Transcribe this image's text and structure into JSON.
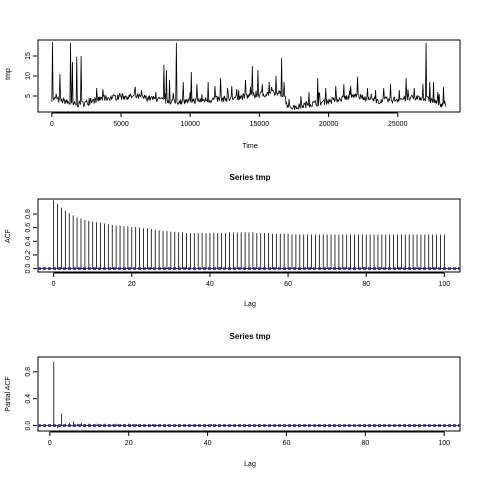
{
  "chart_data": [
    {
      "type": "line",
      "title": "",
      "xlabel": "Time",
      "ylabel": "tmp",
      "xlim": [
        -1000,
        29500
      ],
      "ylim": [
        1.0,
        19.0
      ],
      "xticks": [
        0,
        5000,
        10000,
        15000,
        20000,
        25000
      ],
      "xtick_labels": [
        "0",
        "5000",
        "10000",
        "15000",
        "20000",
        "25000"
      ],
      "yticks": [
        5,
        10,
        15
      ],
      "ytick_labels": [
        "5",
        "10",
        "15"
      ],
      "series_x_range": [
        1,
        28500
      ],
      "baseline": [
        [
          0,
          4.2
        ],
        [
          1000,
          3.6
        ],
        [
          1500,
          2.7
        ],
        [
          2500,
          3.2
        ],
        [
          3500,
          4.2
        ],
        [
          4500,
          4.6
        ],
        [
          6000,
          4.8
        ],
        [
          7000,
          4.4
        ],
        [
          8000,
          3.8
        ],
        [
          9000,
          3.5
        ],
        [
          10000,
          3.7
        ],
        [
          11500,
          4.0
        ],
        [
          13000,
          4.3
        ],
        [
          14000,
          4.8
        ],
        [
          15000,
          5.3
        ],
        [
          16000,
          5.6
        ],
        [
          16800,
          5.4
        ],
        [
          17000,
          2.7
        ],
        [
          17500,
          2.0
        ],
        [
          18500,
          2.8
        ],
        [
          20000,
          3.6
        ],
        [
          21000,
          4.4
        ],
        [
          22000,
          5.0
        ],
        [
          22500,
          4.4
        ],
        [
          23500,
          3.7
        ],
        [
          25000,
          4.1
        ],
        [
          26500,
          4.5
        ],
        [
          27500,
          3.8
        ],
        [
          28500,
          2.4
        ]
      ],
      "spikes": [
        [
          50,
          18.5
        ],
        [
          300,
          5.5
        ],
        [
          600,
          10.5
        ],
        [
          1350,
          18.3
        ],
        [
          1500,
          13.5
        ],
        [
          1800,
          14.8
        ],
        [
          2100,
          15.0
        ],
        [
          2700,
          4.5
        ],
        [
          3800,
          5.2
        ],
        [
          5000,
          5.0
        ],
        [
          6500,
          6.5
        ],
        [
          7500,
          6.0
        ],
        [
          8100,
          12.8
        ],
        [
          8300,
          11.5
        ],
        [
          8500,
          9.0
        ],
        [
          9000,
          18.3
        ],
        [
          9500,
          8.5
        ],
        [
          10100,
          11.0
        ],
        [
          10500,
          8.0
        ],
        [
          11300,
          8.5
        ],
        [
          11800,
          7.5
        ],
        [
          12200,
          9.5
        ],
        [
          12700,
          7.0
        ],
        [
          13000,
          7.5
        ],
        [
          13500,
          6.5
        ],
        [
          14000,
          9.0
        ],
        [
          14500,
          12.5
        ],
        [
          14900,
          11.5
        ],
        [
          15200,
          8.0
        ],
        [
          15700,
          8.5
        ],
        [
          16200,
          10.0
        ],
        [
          16600,
          14.5
        ],
        [
          16800,
          8.5
        ],
        [
          18000,
          5.0
        ],
        [
          18600,
          6.0
        ],
        [
          19200,
          9.5
        ],
        [
          19800,
          7.0
        ],
        [
          20500,
          7.5
        ],
        [
          21100,
          8.0
        ],
        [
          21600,
          7.5
        ],
        [
          22100,
          9.8
        ],
        [
          22800,
          7.0
        ],
        [
          23400,
          6.5
        ],
        [
          24000,
          7.0
        ],
        [
          24500,
          8.0
        ],
        [
          25100,
          6.5
        ],
        [
          25600,
          9.5
        ],
        [
          26200,
          7.0
        ],
        [
          26800,
          8.0
        ],
        [
          27050,
          18.3
        ],
        [
          27300,
          8.5
        ],
        [
          27600,
          8.5
        ],
        [
          28000,
          5.5
        ],
        [
          28300,
          7.2
        ]
      ]
    },
    {
      "type": "bar",
      "title": "Series  tmp",
      "xlabel": "Lag",
      "ylabel": "ACF",
      "xlim": [
        -4,
        104
      ],
      "ylim": [
        -0.05,
        1.02
      ],
      "xticks": [
        0,
        20,
        40,
        60,
        80,
        100
      ],
      "xtick_labels": [
        "0",
        "20",
        "40",
        "60",
        "80",
        "100"
      ],
      "yticks": [
        0.0,
        0.2,
        0.4,
        0.6,
        0.8
      ],
      "ytick_labels": [
        "0.0",
        "0.2",
        "0.4",
        "0.6",
        "0.8"
      ],
      "confidence_band": [
        -0.012,
        0.012
      ],
      "x": [
        0,
        1,
        2,
        3,
        4,
        5,
        6,
        7,
        8,
        9,
        10,
        11,
        12,
        13,
        14,
        15,
        16,
        17,
        18,
        19,
        20,
        21,
        22,
        23,
        24,
        25,
        26,
        27,
        28,
        29,
        30,
        31,
        32,
        33,
        34,
        35,
        36,
        37,
        38,
        39,
        40,
        41,
        42,
        43,
        44,
        45,
        46,
        47,
        48,
        49,
        50,
        51,
        52,
        53,
        54,
        55,
        56,
        57,
        58,
        59,
        60,
        61,
        62,
        63,
        64,
        65,
        66,
        67,
        68,
        69,
        70,
        71,
        72,
        73,
        74,
        75,
        76,
        77,
        78,
        79,
        80,
        81,
        82,
        83,
        84,
        85,
        86,
        87,
        88,
        89,
        90,
        91,
        92,
        93,
        94,
        95,
        96,
        97,
        98,
        99,
        100
      ],
      "values": [
        1.0,
        0.95,
        0.89,
        0.85,
        0.81,
        0.78,
        0.75,
        0.73,
        0.71,
        0.7,
        0.69,
        0.68,
        0.67,
        0.66,
        0.65,
        0.64,
        0.63,
        0.63,
        0.62,
        0.62,
        0.61,
        0.61,
        0.6,
        0.59,
        0.59,
        0.58,
        0.57,
        0.56,
        0.55,
        0.55,
        0.54,
        0.54,
        0.53,
        0.53,
        0.52,
        0.52,
        0.52,
        0.52,
        0.52,
        0.52,
        0.52,
        0.52,
        0.52,
        0.52,
        0.52,
        0.53,
        0.53,
        0.53,
        0.53,
        0.53,
        0.53,
        0.53,
        0.52,
        0.52,
        0.52,
        0.52,
        0.51,
        0.51,
        0.51,
        0.51,
        0.51,
        0.5,
        0.5,
        0.5,
        0.5,
        0.5,
        0.5,
        0.5,
        0.5,
        0.5,
        0.5,
        0.5,
        0.5,
        0.5,
        0.5,
        0.5,
        0.5,
        0.5,
        0.5,
        0.5,
        0.5,
        0.5,
        0.5,
        0.5,
        0.5,
        0.5,
        0.5,
        0.5,
        0.5,
        0.5,
        0.5,
        0.5,
        0.5,
        0.5,
        0.5,
        0.5,
        0.5,
        0.5,
        0.5,
        0.5,
        0.5
      ]
    },
    {
      "type": "bar",
      "title": "Series  tmp",
      "xlabel": "Lag",
      "ylabel": "Partial ACF",
      "xlim": [
        -3,
        104
      ],
      "ylim": [
        -0.08,
        1.02
      ],
      "xticks": [
        0,
        20,
        40,
        60,
        80,
        100
      ],
      "xtick_labels": [
        "0",
        "20",
        "40",
        "60",
        "80",
        "100"
      ],
      "yticks": [
        0.0,
        0.4,
        0.8
      ],
      "ytick_labels": [
        "0.0",
        "0.4",
        "0.8"
      ],
      "confidence_band": [
        -0.012,
        0.012
      ],
      "x": [
        1,
        2,
        3,
        4,
        5,
        6,
        7,
        8,
        9,
        10,
        11,
        12,
        13,
        14,
        15,
        16,
        17,
        18,
        19,
        20,
        21,
        22,
        23,
        24,
        25,
        26,
        27,
        28,
        29,
        30,
        31,
        32,
        33,
        34,
        35,
        36,
        37,
        38,
        39,
        40,
        41,
        42,
        43,
        44,
        45,
        46,
        47,
        48,
        49,
        50,
        51,
        52,
        53,
        54,
        55,
        56,
        57,
        58,
        59,
        60,
        61,
        62,
        63,
        64,
        65,
        66,
        67,
        68,
        69,
        70,
        71,
        72,
        73,
        74,
        75,
        76,
        77,
        78,
        79,
        80,
        81,
        82,
        83,
        84,
        85,
        86,
        87,
        88,
        89,
        90,
        91,
        92,
        93,
        94,
        95,
        96,
        97,
        98,
        99,
        100
      ],
      "values": [
        0.95,
        -0.04,
        0.18,
        0.03,
        0.04,
        0.06,
        0.03,
        0.04,
        0.02,
        0.03,
        0.02,
        0.03,
        0.02,
        0.03,
        0.02,
        0.02,
        0.03,
        0.02,
        0.02,
        0.03,
        0.02,
        0.02,
        0.02,
        0.01,
        0.02,
        0.02,
        0.01,
        0.02,
        0.01,
        0.02,
        0.01,
        0.01,
        0.02,
        0.01,
        0.01,
        0.01,
        0.02,
        0.01,
        0.01,
        0.01,
        0.02,
        0.01,
        0.01,
        0.01,
        0.01,
        0.01,
        0.02,
        0.01,
        0.01,
        0.01,
        0.01,
        0.01,
        0.01,
        0.01,
        0.01,
        0.01,
        0.01,
        0.01,
        0.01,
        0.01,
        0.01,
        0.01,
        0.01,
        0.01,
        0.01,
        0.01,
        0.01,
        0.01,
        0.01,
        0.01,
        0.01,
        0.01,
        0.01,
        0.01,
        0.01,
        0.01,
        0.01,
        0.01,
        0.01,
        0.01,
        0.01,
        0.01,
        0.01,
        0.01,
        0.01,
        0.01,
        0.01,
        0.01,
        0.01,
        0.01,
        0.01,
        0.01,
        0.01,
        0.01,
        0.01,
        0.01,
        0.01,
        0.01,
        0.01,
        0.01
      ]
    }
  ]
}
